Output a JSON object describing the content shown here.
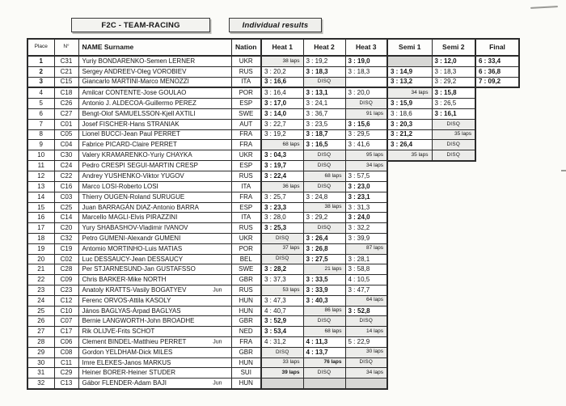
{
  "header": {
    "title": "F2C - TEAM-RACING",
    "subtitle": "Individual results"
  },
  "colors": {
    "table_border": "#2b2b2b",
    "shaded_cell": "#d7d7d5",
    "result_cell_tint": "#ececea",
    "paper": "#fbfbf8"
  },
  "table": {
    "columns": [
      "Place",
      "N°",
      "NAME Surname",
      "Nation",
      "Heat 1",
      "Heat 2",
      "Heat 3",
      "Semi 1",
      "Semi 2",
      "Final"
    ],
    "rows": [
      {
        "place": "1",
        "num": "C31",
        "name": "Yuriy BONDARENKO-Semen LERNER",
        "jun": "",
        "nation": "UKR",
        "results": [
          [
            "38 laps",
            "laps",
            0
          ],
          [
            "3 : 19,2",
            "time",
            0
          ],
          [
            "3 : 19,0",
            "time",
            1
          ],
          [
            "",
            "shade",
            0
          ],
          [
            "3 : 12,0",
            "time",
            1
          ],
          [
            "6 : 33,4",
            "time",
            1
          ]
        ]
      },
      {
        "place": "2",
        "num": "C21",
        "name": "Sergey ANDREEV-Oleg VOROBIEV",
        "jun": "",
        "nation": "RUS",
        "results": [
          [
            "3 : 20,2",
            "time",
            0
          ],
          [
            "3 : 18,3",
            "time",
            1
          ],
          [
            "3 : 18,3",
            "time",
            0
          ],
          [
            "3 : 14,9",
            "time",
            1
          ],
          [
            "3 : 18,3",
            "time",
            0
          ],
          [
            "6 : 36,8",
            "time",
            1
          ]
        ]
      },
      {
        "place": "3",
        "num": "C15",
        "name": "Giancarlo MARTINI-Marco MENOZZI",
        "jun": "",
        "nation": "ITA",
        "results": [
          [
            "3 : 16,6",
            "time",
            1
          ],
          [
            "DISQ",
            "disq",
            0
          ],
          [
            "",
            "empty",
            0
          ],
          [
            "3 : 13,2",
            "time",
            1
          ],
          [
            "3 : 29,2",
            "time",
            0
          ],
          [
            "7 : 09,2",
            "time",
            1
          ]
        ]
      },
      {
        "place": "4",
        "num": "C18",
        "name": "Amilcar CONTENTE-Jose GOULAO",
        "jun": "",
        "nation": "POR",
        "results": [
          [
            "3 : 16,4",
            "time",
            0
          ],
          [
            "3 : 13,1",
            "time",
            1
          ],
          [
            "3 : 20,0",
            "time",
            0
          ],
          [
            "34 laps",
            "laps",
            0
          ],
          [
            "3 : 15,8",
            "time",
            1
          ],
          null
        ]
      },
      {
        "place": "5",
        "num": "C26",
        "name": "Antonio J. ALDECOA-Guillermo PEREZ",
        "jun": "",
        "nation": "ESP",
        "results": [
          [
            "3 : 17,0",
            "time",
            1
          ],
          [
            "3 : 24,1",
            "time",
            0
          ],
          [
            "DISQ",
            "disq",
            0
          ],
          [
            "3 : 15,9",
            "time",
            1
          ],
          [
            "3 : 26,5",
            "time",
            0
          ],
          null
        ]
      },
      {
        "place": "6",
        "num": "C27",
        "name": "Bengt-Olof SAMUELSSON-Kjell AXTILI",
        "jun": "",
        "nation": "SWE",
        "results": [
          [
            "3 : 14,0",
            "time",
            1
          ],
          [
            "3 : 36,7",
            "time",
            0
          ],
          [
            "91 laps",
            "laps",
            0
          ],
          [
            "3 : 18,6",
            "time",
            0
          ],
          [
            "3 : 16,1",
            "time",
            1
          ],
          null
        ]
      },
      {
        "place": "7",
        "num": "C01",
        "name": "Josef FISCHER-Hans STRANIAK",
        "jun": "",
        "nation": "AUT",
        "results": [
          [
            "3 : 22,7",
            "time",
            0
          ],
          [
            "3 : 23,5",
            "time",
            0
          ],
          [
            "3 : 15,6",
            "time",
            1
          ],
          [
            "3 : 20,3",
            "time",
            1
          ],
          [
            "DISQ",
            "disq",
            0
          ],
          null
        ]
      },
      {
        "place": "8",
        "num": "C05",
        "name": "Lionel BUCCI-Jean Paul PERRET",
        "jun": "",
        "nation": "FRA",
        "results": [
          [
            "3 : 19,2",
            "time",
            0
          ],
          [
            "3 : 18,7",
            "time",
            1
          ],
          [
            "3 : 29,5",
            "time",
            0
          ],
          [
            "3 : 21,2",
            "time",
            1
          ],
          [
            "35 laps",
            "laps",
            0
          ],
          null
        ]
      },
      {
        "place": "9",
        "num": "C04",
        "name": "Fabrice PICARD-Claire PERRET",
        "jun": "",
        "nation": "FRA",
        "results": [
          [
            "68 laps",
            "laps",
            0
          ],
          [
            "3 : 16,5",
            "time",
            1
          ],
          [
            "3 : 41,6",
            "time",
            0
          ],
          [
            "3 : 26,4",
            "time",
            1
          ],
          [
            "DISQ",
            "disq",
            0
          ],
          null
        ]
      },
      {
        "place": "10",
        "num": "C30",
        "name": "Valery KRAMARENKO-Yuriy CHAYKA",
        "jun": "",
        "nation": "UKR",
        "results": [
          [
            "3 : 04,3",
            "time",
            1
          ],
          [
            "DISQ",
            "disq",
            0
          ],
          [
            "95 laps",
            "laps",
            0
          ],
          [
            "35 laps",
            "laps",
            0
          ],
          [
            "DISQ",
            "disq",
            0
          ],
          null
        ]
      },
      {
        "place": "11",
        "num": "C24",
        "name": "Pedro CRESPI SEGUI-MARTIN CRESP",
        "jun": "",
        "nation": "ESP",
        "results": [
          [
            "3 : 19,7",
            "time",
            1
          ],
          [
            "DISQ",
            "disq",
            0
          ],
          [
            "34 laps",
            "laps",
            0
          ],
          null,
          null,
          null
        ]
      },
      {
        "place": "12",
        "num": "C22",
        "name": "Andrey YUSHENKO-Viktor YUGOV",
        "jun": "",
        "nation": "RUS",
        "results": [
          [
            "3 : 22,4",
            "time",
            1
          ],
          [
            "68 laps",
            "laps",
            0
          ],
          [
            "3 : 57,5",
            "time",
            0
          ],
          null,
          null,
          null
        ]
      },
      {
        "place": "13",
        "num": "C16",
        "name": "Marco LOSI-Roberto LOSI",
        "jun": "",
        "nation": "ITA",
        "results": [
          [
            "36 laps",
            "laps",
            0
          ],
          [
            "DISQ",
            "disq",
            0
          ],
          [
            "3 : 23,0",
            "time",
            1
          ],
          null,
          null,
          null
        ]
      },
      {
        "place": "14",
        "num": "C03",
        "name": "Thierry OUGEN-Roland SURUGUE",
        "jun": "",
        "nation": "FRA",
        "results": [
          [
            "3 : 25,7",
            "time",
            0
          ],
          [
            "3 : 24,8",
            "time",
            0
          ],
          [
            "3 : 23,1",
            "time",
            1
          ],
          null,
          null,
          null
        ]
      },
      {
        "place": "15",
        "num": "C25",
        "name": "Juan BARRAGÁN DIAZ-Antonio BARRA",
        "jun": "",
        "nation": "ESP",
        "results": [
          [
            "3 : 23,3",
            "time",
            1
          ],
          [
            "38 laps",
            "laps",
            0
          ],
          [
            "3 : 31,3",
            "time",
            0
          ],
          null,
          null,
          null
        ]
      },
      {
        "place": "16",
        "num": "C14",
        "name": "Marcello MAGLI-Elvis PIRAZZINI",
        "jun": "",
        "nation": "ITA",
        "results": [
          [
            "3 : 28,0",
            "time",
            0
          ],
          [
            "3 : 29,2",
            "time",
            0
          ],
          [
            "3 : 24,0",
            "time",
            1
          ],
          null,
          null,
          null
        ]
      },
      {
        "place": "17",
        "num": "C20",
        "name": "Yury SHABASHOV-Vladimir IVANOV",
        "jun": "",
        "nation": "RUS",
        "results": [
          [
            "3 : 25,3",
            "time",
            1
          ],
          [
            "DISQ",
            "disq",
            0
          ],
          [
            "3 : 32,2",
            "time",
            0
          ],
          null,
          null,
          null
        ]
      },
      {
        "place": "18",
        "num": "C32",
        "name": "Petro GUMENI-Alexandr GUMENI",
        "jun": "",
        "nation": "UKR",
        "results": [
          [
            "DISQ",
            "disq",
            0
          ],
          [
            "3 : 26,4",
            "time",
            1
          ],
          [
            "3 : 39,9",
            "time",
            0
          ],
          null,
          null,
          null
        ]
      },
      {
        "place": "19",
        "num": "C19",
        "name": "Antomio MORTINHO-Luis MATIAS",
        "jun": "",
        "nation": "POR",
        "results": [
          [
            "37 laps",
            "laps",
            0
          ],
          [
            "3 : 26,8",
            "time",
            1
          ],
          [
            "87 laps",
            "laps",
            0
          ],
          null,
          null,
          null
        ]
      },
      {
        "place": "20",
        "num": "C02",
        "name": "Luc DESSAUCY-Jean DESSAUCY",
        "jun": "",
        "nation": "BEL",
        "results": [
          [
            "DISQ",
            "disq",
            0
          ],
          [
            "3 : 27,5",
            "time",
            1
          ],
          [
            "3 : 28,1",
            "time",
            0
          ],
          null,
          null,
          null
        ]
      },
      {
        "place": "21",
        "num": "C28",
        "name": "Per STJARNESUND-Jan GUSTAFSSO",
        "jun": "",
        "nation": "SWE",
        "results": [
          [
            "3 : 28,2",
            "time",
            1
          ],
          [
            "21 laps",
            "laps",
            0
          ],
          [
            "3 : 58,8",
            "time",
            0
          ],
          null,
          null,
          null
        ]
      },
      {
        "place": "22",
        "num": "C09",
        "name": "Chris BARKER-Mike NORTH",
        "jun": "",
        "nation": "GBR",
        "results": [
          [
            "3 : 37,3",
            "time",
            0
          ],
          [
            "3 : 33,5",
            "time",
            1
          ],
          [
            "4 : 10,5",
            "time",
            0
          ],
          null,
          null,
          null
        ]
      },
      {
        "place": "23",
        "num": "C23",
        "name": "Anatoly KRATTS-Vasily BOGATYEV",
        "jun": "Jun",
        "nation": "RUS",
        "results": [
          [
            "53 laps",
            "laps",
            0
          ],
          [
            "3 : 33,9",
            "time",
            1
          ],
          [
            "3 : 47,7",
            "time",
            0
          ],
          null,
          null,
          null
        ]
      },
      {
        "place": "24",
        "num": "C12",
        "name": "Ferenc ORVOS-Attila KASOLY",
        "jun": "",
        "nation": "HUN",
        "results": [
          [
            "3 : 47,3",
            "time",
            0
          ],
          [
            "3 : 40,3",
            "time",
            1
          ],
          [
            "64 laps",
            "laps",
            0
          ],
          null,
          null,
          null
        ]
      },
      {
        "place": "25",
        "num": "C10",
        "name": "János BAGLYAS-Árpad BAGLYAS",
        "jun": "",
        "nation": "HUN",
        "results": [
          [
            "4 : 40,7",
            "time",
            0
          ],
          [
            "86 laps",
            "laps",
            0
          ],
          [
            "3 : 52,8",
            "time",
            1
          ],
          null,
          null,
          null
        ]
      },
      {
        "place": "26",
        "num": "C07",
        "name": "Bernie LANGWORTH-John BROADHE",
        "jun": "",
        "nation": "GBR",
        "results": [
          [
            "3 : 52,9",
            "time",
            1
          ],
          [
            "DISQ",
            "disq",
            0
          ],
          [
            "DISQ",
            "disq",
            0
          ],
          null,
          null,
          null
        ]
      },
      {
        "place": "27",
        "num": "C17",
        "name": "Rik OLIJVE-Frits SCHOT",
        "jun": "",
        "nation": "NED",
        "results": [
          [
            "3 : 53,4",
            "time",
            1
          ],
          [
            "68 laps",
            "laps",
            0
          ],
          [
            "14 laps",
            "laps",
            0
          ],
          null,
          null,
          null
        ]
      },
      {
        "place": "28",
        "num": "C06",
        "name": "Clement BINDEL-Matthieu PERRET",
        "jun": "Jun",
        "nation": "FRA",
        "results": [
          [
            "4 : 31,2",
            "time",
            0
          ],
          [
            "4 : 11,3",
            "time",
            1
          ],
          [
            "5 : 22,9",
            "time",
            0
          ],
          null,
          null,
          null
        ]
      },
      {
        "place": "29",
        "num": "C08",
        "name": "Gordon YELDHAM-Dick MILES",
        "jun": "",
        "nation": "GBR",
        "results": [
          [
            "DISQ",
            "disq",
            0
          ],
          [
            "4 : 13,7",
            "time",
            1
          ],
          [
            "30 laps",
            "laps",
            0
          ],
          null,
          null,
          null
        ]
      },
      {
        "place": "30",
        "num": "C11",
        "name": "Imre ELEKES-Janos MARKUS",
        "jun": "",
        "nation": "HUN",
        "results": [
          [
            "33 laps",
            "laps",
            0
          ],
          [
            "76 laps",
            "laps",
            1
          ],
          [
            "DISQ",
            "disq",
            0
          ],
          null,
          null,
          null
        ]
      },
      {
        "place": "31",
        "num": "C29",
        "name": "Heiner BORER-Heiner STUDER",
        "jun": "",
        "nation": "SUI",
        "results": [
          [
            "39 laps",
            "laps",
            1
          ],
          [
            "DISQ",
            "disq",
            0
          ],
          [
            "34 laps",
            "laps",
            0
          ],
          null,
          null,
          null
        ]
      },
      {
        "place": "32",
        "num": "C13",
        "name": "Gábor FLENDER-Adam BAJI",
        "jun": "Jun",
        "nation": "HUN",
        "results": [
          [
            "",
            "shade",
            0
          ],
          [
            "",
            "shade",
            0
          ],
          [
            "",
            "shade",
            0
          ],
          null,
          null,
          null
        ]
      }
    ]
  }
}
